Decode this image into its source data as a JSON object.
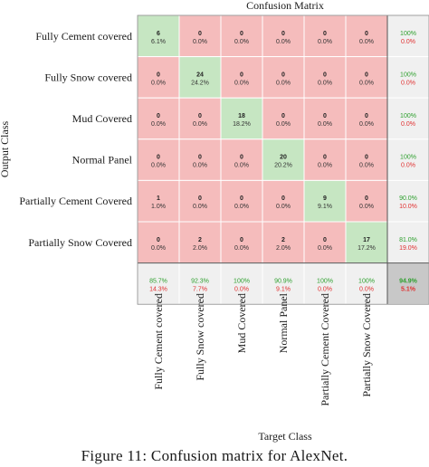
{
  "chart_data": {
    "type": "heatmap",
    "title": "Confusion Matrix",
    "xlabel": "Target Class",
    "ylabel": "Output Class",
    "classes": [
      "Fully Cement covered",
      "Fully Snow covered",
      "Mud Covered",
      "Normal Panel",
      "Partially Cement Covered",
      "Partially Snow Covered"
    ],
    "counts": [
      [
        6,
        0,
        0,
        0,
        0,
        0
      ],
      [
        0,
        24,
        0,
        0,
        0,
        0
      ],
      [
        0,
        0,
        18,
        0,
        0,
        0
      ],
      [
        0,
        0,
        0,
        20,
        0,
        0
      ],
      [
        1,
        0,
        0,
        0,
        9,
        0
      ],
      [
        0,
        2,
        0,
        2,
        0,
        17
      ]
    ],
    "percents": [
      [
        "6.1%",
        "0.0%",
        "0.0%",
        "0.0%",
        "0.0%",
        "0.0%"
      ],
      [
        "0.0%",
        "24.2%",
        "0.0%",
        "0.0%",
        "0.0%",
        "0.0%"
      ],
      [
        "0.0%",
        "0.0%",
        "18.2%",
        "0.0%",
        "0.0%",
        "0.0%"
      ],
      [
        "0.0%",
        "0.0%",
        "0.0%",
        "20.2%",
        "0.0%",
        "0.0%"
      ],
      [
        "1.0%",
        "0.0%",
        "0.0%",
        "0.0%",
        "9.1%",
        "0.0%"
      ],
      [
        "0.0%",
        "2.0%",
        "0.0%",
        "2.0%",
        "0.0%",
        "17.2%"
      ]
    ],
    "row_summary": [
      [
        "100%",
        "0.0%"
      ],
      [
        "100%",
        "0.0%"
      ],
      [
        "100%",
        "0.0%"
      ],
      [
        "100%",
        "0.0%"
      ],
      [
        "90.0%",
        "10.0%"
      ],
      [
        "81.0%",
        "19.0%"
      ]
    ],
    "col_summary": [
      [
        "85.7%",
        "14.3%"
      ],
      [
        "92.3%",
        "7.7%"
      ],
      [
        "100%",
        "0.0%"
      ],
      [
        "90.9%",
        "9.1%"
      ],
      [
        "100%",
        "0.0%"
      ],
      [
        "100%",
        "0.0%"
      ]
    ],
    "overall": [
      "94.9%",
      "5.1%"
    ]
  },
  "colors": {
    "correct_cell": "#c6e6c2",
    "error_cell": "#f5bcbc",
    "summary_cell": "#f0f0f0",
    "overall_cell": "#c8c8c8",
    "good_text": "#2ea02e",
    "bad_text": "#e03030"
  },
  "caption": "Figure 11: Confusion matrix for AlexNet."
}
